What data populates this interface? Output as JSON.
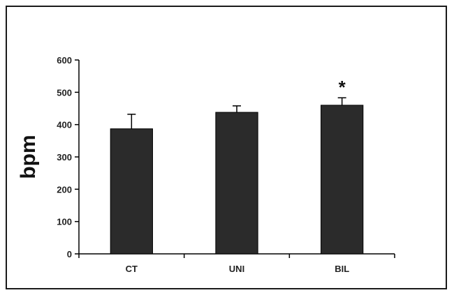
{
  "chart_data": {
    "type": "bar",
    "title": "",
    "xlabel": "",
    "ylabel": "bpm",
    "ylim": [
      0,
      600
    ],
    "yticks": [
      "0",
      "100",
      "200",
      "300",
      "400",
      "500",
      "600"
    ],
    "categories": [
      "CT",
      "UNI",
      "BIL"
    ],
    "values": [
      387,
      438,
      460
    ],
    "errors": [
      45,
      20,
      23
    ],
    "annotations": [
      "",
      "",
      "*"
    ],
    "grid": false,
    "legend": "none",
    "bar_color": "#2b2b2b"
  }
}
